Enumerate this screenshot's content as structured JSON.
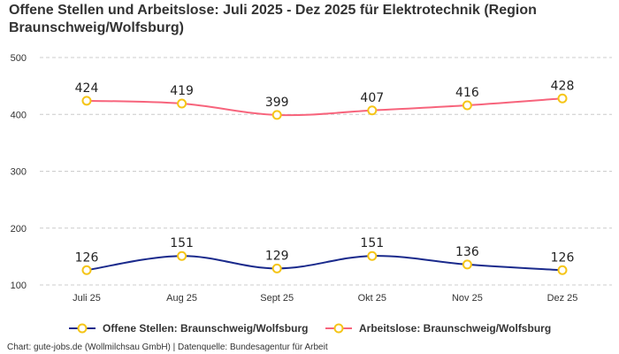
{
  "chart_data": {
    "type": "line",
    "title": "Offene Stellen und Arbeitslose: Juli 2025 - Dez 2025 für Elektrotechnik (Region Braunschweig/Wolfsburg)",
    "categories": [
      "Juli 25",
      "Aug 25",
      "Sept 25",
      "Okt 25",
      "Nov 25",
      "Dez 25"
    ],
    "yticks": [
      100,
      200,
      300,
      400,
      500
    ],
    "ylim": [
      100,
      500
    ],
    "grid": true,
    "legend_position": "bottom",
    "series": [
      {
        "name": "Offene Stellen: Braunschweig/Wolfsburg",
        "values": [
          126,
          151,
          129,
          151,
          136,
          126
        ],
        "color": "#1a2a8c"
      },
      {
        "name": "Arbeitslose: Braunschweig/Wolfsburg",
        "values": [
          424,
          419,
          399,
          407,
          416,
          428
        ],
        "color": "#f7647c"
      }
    ],
    "marker_color": "#f5c518"
  },
  "credit": "Chart: gute-jobs.de (Wollmilchsau GmbH) | Datenquelle: Bundesagentur für Arbeit"
}
